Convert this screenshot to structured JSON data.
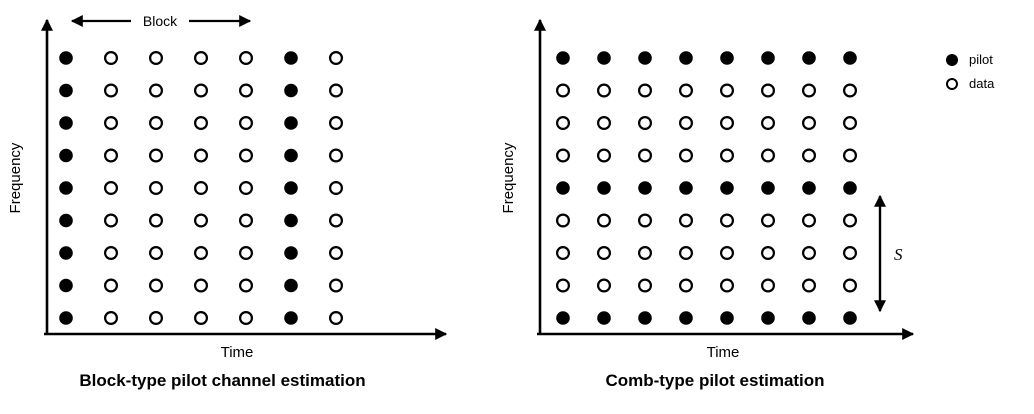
{
  "figure": {
    "colors": {
      "ink": "#000000",
      "background": "#ffffff"
    },
    "legend": {
      "items": [
        {
          "marker": "filled-circle",
          "label": "pilot"
        },
        {
          "marker": "open-circle",
          "label": "data"
        }
      ]
    },
    "panels": [
      {
        "id": "block-type",
        "caption": "Block-type pilot channel estimation",
        "x_label": "Time",
        "y_label": "Frequency",
        "annotation": {
          "label": "Block",
          "type": "horizontal-double-arrow"
        },
        "grid": {
          "rows": 9,
          "cols": 7,
          "pilot_cols": [
            0,
            5
          ]
        }
      },
      {
        "id": "comb-type",
        "caption": "Comb-type pilot estimation",
        "x_label": "Time",
        "y_label": "Frequency",
        "annotation": {
          "label": "S",
          "type": "vertical-double-arrow"
        },
        "grid": {
          "rows": 9,
          "cols": 8,
          "pilot_rows": [
            0,
            4,
            8
          ]
        }
      }
    ]
  }
}
